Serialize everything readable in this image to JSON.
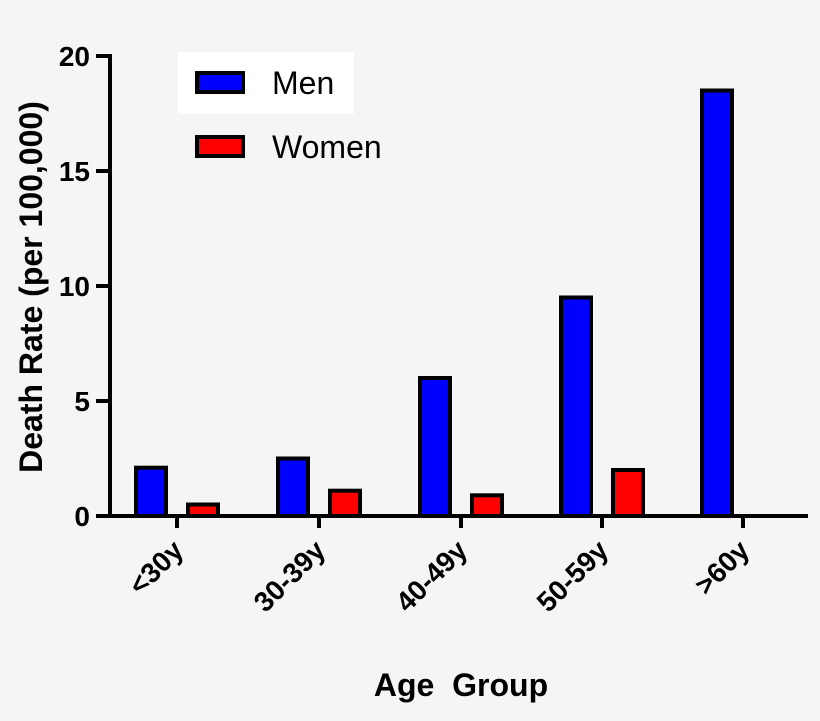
{
  "chart_data": {
    "type": "bar",
    "title": "",
    "xlabel": "Age  Group",
    "ylabel": "Death  Rate  (per 100,000)",
    "ylim": [
      0,
      20
    ],
    "yticks": [
      0,
      5,
      10,
      15,
      20
    ],
    "categories": [
      "<30y",
      "30-39y",
      "40-49y",
      "50-59y",
      ">60y"
    ],
    "series": [
      {
        "name": "Men",
        "color": "#0000ff",
        "values": [
          2.1,
          2.5,
          6.0,
          9.5,
          18.5
        ]
      },
      {
        "name": "Women",
        "color": "#ff0000",
        "values": [
          0.5,
          1.1,
          0.9,
          2.0,
          0.0
        ]
      }
    ],
    "legend": "top-left",
    "grid": false
  }
}
